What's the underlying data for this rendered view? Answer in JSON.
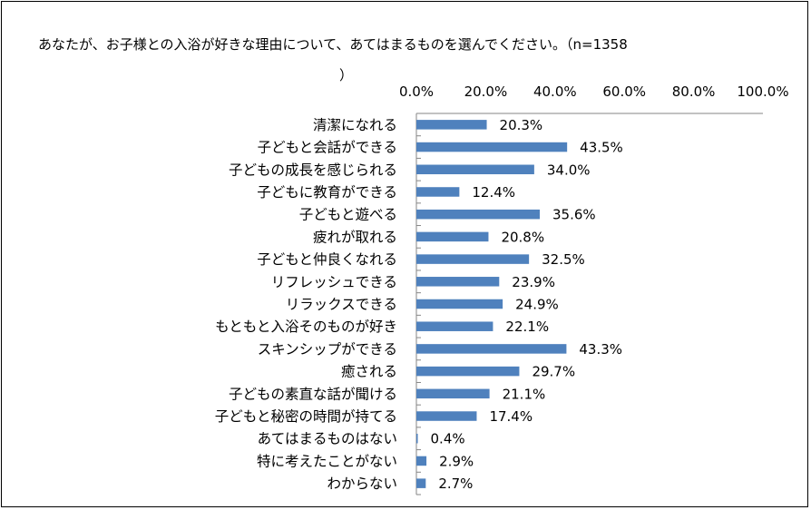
{
  "chart_data": {
    "type": "bar",
    "orientation": "horizontal",
    "title": "あなたが、お子様との入浴が好きな理由について、あてはまるものを選んでください。（n=1358）",
    "title_line1": "あなたが、お子様との入浴が好きな理由について、あてはまるものを選んでください。（n=1358",
    "title_line2": "）",
    "xlim": [
      0,
      100
    ],
    "ticks": [
      "0.0%",
      "20.0%",
      "40.0%",
      "60.0%",
      "80.0%",
      "100.0%"
    ],
    "tick_values": [
      0,
      20,
      40,
      60,
      80,
      100
    ],
    "grid": false,
    "bar_color": "#4F81BD",
    "categories": [
      "清潔になれる",
      "子どもと会話ができる",
      "子どもの成長を感じられる",
      "子どもに教育ができる",
      "子どもと遊べる",
      "疲れが取れる",
      "子どもと仲良くなれる",
      "リフレッシュできる",
      "リラックスできる",
      "もともと入浴そのものが好き",
      "スキンシップができる",
      "癒される",
      "子どもの素直な話が聞ける",
      "子どもと秘密の時間が持てる",
      "あてはまるものはない",
      "特に考えたことがない",
      "わからない"
    ],
    "values": [
      20.3,
      43.5,
      34.0,
      12.4,
      35.6,
      20.8,
      32.5,
      23.9,
      24.9,
      22.1,
      43.3,
      29.7,
      21.1,
      17.4,
      0.4,
      2.9,
      2.7
    ],
    "value_labels": [
      "20.3%",
      "43.5%",
      "34.0%",
      "12.4%",
      "35.6%",
      "20.8%",
      "32.5%",
      "23.9%",
      "24.9%",
      "22.1%",
      "43.3%",
      "29.7%",
      "21.1%",
      "17.4%",
      "0.4%",
      "2.9%",
      "2.7%"
    ]
  }
}
